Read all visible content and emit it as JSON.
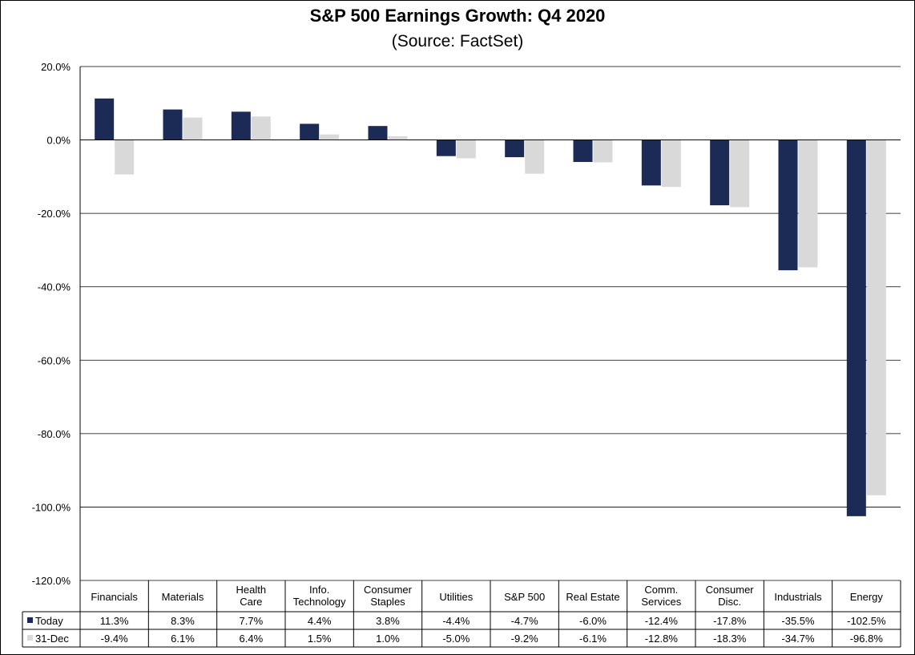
{
  "chart_data": {
    "type": "bar",
    "title": "S&P 500 Earnings Growth: Q4 2020",
    "subtitle": "(Source: FactSet)",
    "xlabel": "",
    "ylabel": "",
    "categories": [
      [
        "Financials"
      ],
      [
        "Materials"
      ],
      [
        "Health",
        "Care"
      ],
      [
        "Info.",
        "Technology"
      ],
      [
        "Consumer",
        "Staples"
      ],
      [
        "Utilities"
      ],
      [
        "S&P 500"
      ],
      [
        "Real Estate"
      ],
      [
        "Comm.",
        "Services"
      ],
      [
        "Consumer",
        "Disc."
      ],
      [
        "Industrials"
      ],
      [
        "Energy"
      ]
    ],
    "series": [
      {
        "name": "Today",
        "color": "#1c2a56",
        "values": [
          11.3,
          8.3,
          7.7,
          4.4,
          3.8,
          -4.4,
          -4.7,
          -6.0,
          -12.4,
          -17.8,
          -35.5,
          -102.5
        ],
        "labels": [
          "11.3%",
          "8.3%",
          "7.7%",
          "4.4%",
          "3.8%",
          "-4.4%",
          "-4.7%",
          "-6.0%",
          "-12.4%",
          "-17.8%",
          "-35.5%",
          "-102.5%"
        ]
      },
      {
        "name": "31-Dec",
        "color": "#d9d9d9",
        "values": [
          -9.4,
          6.1,
          6.4,
          1.5,
          1.0,
          -5.0,
          -9.2,
          -6.1,
          -12.8,
          -18.3,
          -34.7,
          -96.8
        ],
        "labels": [
          "-9.4%",
          "6.1%",
          "6.4%",
          "1.5%",
          "1.0%",
          "-5.0%",
          "-9.2%",
          "-6.1%",
          "-12.8%",
          "-18.3%",
          "-34.7%",
          "-96.8%"
        ]
      }
    ],
    "ylim": [
      -120,
      20
    ],
    "yticks": [
      20,
      0,
      -20,
      -40,
      -60,
      -80,
      -100,
      -120
    ],
    "ytick_labels": [
      "20.0%",
      "0.0%",
      "-20.0%",
      "-40.0%",
      "-60.0%",
      "-80.0%",
      "-100.0%",
      "-120.0%"
    ],
    "grid": true,
    "legend": "data table",
    "data_table": true
  }
}
